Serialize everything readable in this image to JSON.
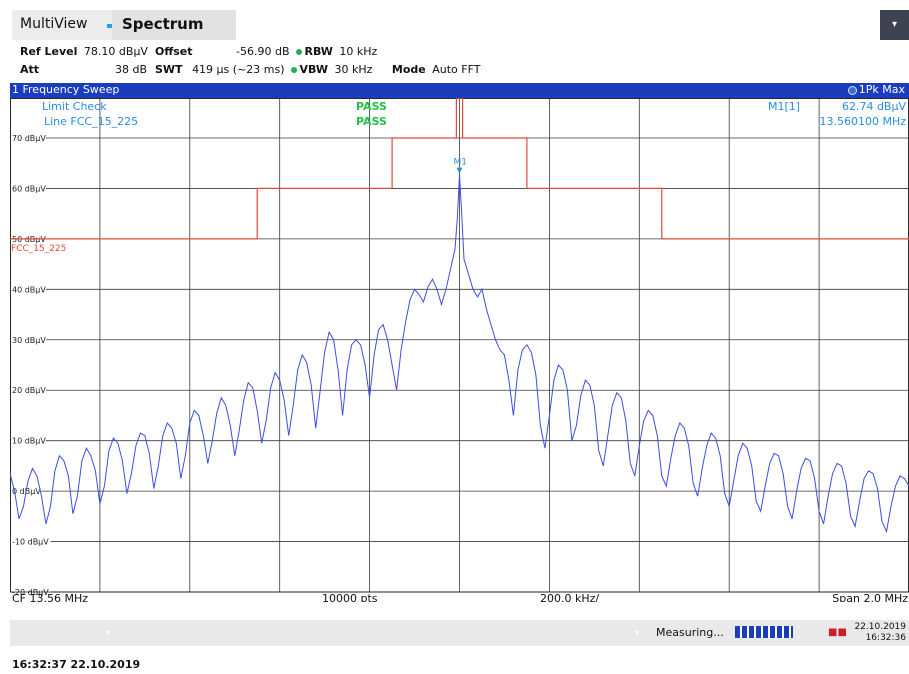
{
  "header": {
    "tabs": [
      {
        "label": "MultiView",
        "active": false
      },
      {
        "label": "Spectrum",
        "active": true
      }
    ],
    "dropdown_icon": "chevron-down-icon"
  },
  "settings": {
    "ref_level_label": "Ref Level",
    "ref_level_value": "78.10 dBµV",
    "offset_label": "Offset",
    "offset_value": "-56.90 dB",
    "rbw_label": "RBW",
    "rbw_value": "10 kHz",
    "att_label": "Att",
    "att_value": "38 dB",
    "swt_label": "SWT",
    "swt_value": "419 µs (~23 ms)",
    "vbw_label": "VBW",
    "vbw_value": "30 kHz",
    "mode_label": "Mode",
    "mode_value": "Auto FFT"
  },
  "window": {
    "title": "1 Frequency Sweep",
    "trace_label": "1Pk Max"
  },
  "limit_check": {
    "title": "Limit Check",
    "title_result": "PASS",
    "line_label": "Line FCC_15_225",
    "line_result": "PASS",
    "line_tag": "FCC_15_225"
  },
  "marker": {
    "name": "M1[1]",
    "level": "62.74 dBµV",
    "freq": "13.560100 MHz",
    "tag": "M1"
  },
  "chart_data": {
    "type": "line",
    "y_unit": "dBµV",
    "ylim": [
      -20,
      80
    ],
    "yticks": [
      -20,
      -10,
      0,
      10,
      20,
      30,
      40,
      50,
      60,
      70
    ],
    "ytick_labels": [
      "-20 dBµV",
      "-10 dBµV",
      "0 dBµV",
      "10 dBµV",
      "20 dBµV",
      "30 dBµV",
      "40 dBµV",
      "50 dBµV",
      "60 dBµV",
      "70 dBµV"
    ],
    "xlim_mhz": [
      12.56,
      14.56
    ],
    "grid": true,
    "x_info": {
      "center": "CF 13.56 MHz",
      "points": "10000 pts",
      "div": "200.0 kHz/",
      "span": "Span 2.0 MHz"
    },
    "limit_line": [
      [
        12.56,
        50.0
      ],
      [
        13.11,
        50.0
      ],
      [
        13.11,
        60.0
      ],
      [
        13.41,
        60.0
      ],
      [
        13.41,
        70.0
      ],
      [
        13.553,
        70.0
      ],
      [
        13.553,
        80.0
      ],
      [
        13.567,
        80.0
      ],
      [
        13.567,
        70.0
      ],
      [
        13.71,
        70.0
      ],
      [
        13.71,
        60.0
      ],
      [
        14.01,
        60.0
      ],
      [
        14.01,
        50.0
      ],
      [
        14.56,
        50.0
      ]
    ],
    "trace": [
      [
        12.56,
        3.5
      ],
      [
        12.57,
        0.0
      ],
      [
        12.58,
        -5.5
      ],
      [
        12.59,
        -3.0
      ],
      [
        12.6,
        2.0
      ],
      [
        12.61,
        4.5
      ],
      [
        12.62,
        3.0
      ],
      [
        12.63,
        -1.0
      ],
      [
        12.64,
        -6.5
      ],
      [
        12.65,
        -3.0
      ],
      [
        12.66,
        4.0
      ],
      [
        12.67,
        7.0
      ],
      [
        12.68,
        6.0
      ],
      [
        12.69,
        3.0
      ],
      [
        12.7,
        -4.5
      ],
      [
        12.71,
        -1.0
      ],
      [
        12.72,
        6.0
      ],
      [
        12.73,
        8.5
      ],
      [
        12.74,
        7.0
      ],
      [
        12.75,
        4.0
      ],
      [
        12.76,
        -2.5
      ],
      [
        12.77,
        1.0
      ],
      [
        12.78,
        8.0
      ],
      [
        12.79,
        10.5
      ],
      [
        12.8,
        9.5
      ],
      [
        12.81,
        6.0
      ],
      [
        12.82,
        -0.5
      ],
      [
        12.83,
        3.5
      ],
      [
        12.84,
        9.0
      ],
      [
        12.85,
        11.5
      ],
      [
        12.86,
        11.0
      ],
      [
        12.87,
        7.5
      ],
      [
        12.88,
        0.5
      ],
      [
        12.89,
        5.0
      ],
      [
        12.9,
        11.0
      ],
      [
        12.91,
        13.5
      ],
      [
        12.92,
        12.5
      ],
      [
        12.93,
        9.5
      ],
      [
        12.94,
        2.5
      ],
      [
        12.95,
        7.0
      ],
      [
        12.96,
        13.5
      ],
      [
        12.97,
        16.0
      ],
      [
        12.98,
        15.0
      ],
      [
        12.99,
        11.0
      ],
      [
        13.0,
        5.5
      ],
      [
        13.01,
        10.0
      ],
      [
        13.02,
        15.5
      ],
      [
        13.03,
        18.5
      ],
      [
        13.04,
        17.0
      ],
      [
        13.05,
        13.0
      ],
      [
        13.06,
        7.0
      ],
      [
        13.07,
        12.0
      ],
      [
        13.08,
        18.0
      ],
      [
        13.09,
        21.5
      ],
      [
        13.1,
        20.5
      ],
      [
        13.11,
        16.0
      ],
      [
        13.12,
        9.5
      ],
      [
        13.13,
        14.0
      ],
      [
        13.14,
        20.5
      ],
      [
        13.15,
        23.5
      ],
      [
        13.16,
        22.0
      ],
      [
        13.17,
        18.0
      ],
      [
        13.18,
        11.0
      ],
      [
        13.19,
        17.0
      ],
      [
        13.2,
        24.0
      ],
      [
        13.21,
        27.0
      ],
      [
        13.22,
        25.5
      ],
      [
        13.23,
        21.0
      ],
      [
        13.24,
        12.5
      ],
      [
        13.25,
        20.0
      ],
      [
        13.26,
        27.5
      ],
      [
        13.27,
        31.5
      ],
      [
        13.28,
        30.0
      ],
      [
        13.29,
        24.0
      ],
      [
        13.3,
        15.0
      ],
      [
        13.31,
        24.0
      ],
      [
        13.32,
        29.0
      ],
      [
        13.33,
        30.0
      ],
      [
        13.34,
        29.0
      ],
      [
        13.35,
        25.0
      ],
      [
        13.36,
        18.5
      ],
      [
        13.37,
        27.0
      ],
      [
        13.38,
        32.0
      ],
      [
        13.39,
        33.0
      ],
      [
        13.4,
        30.0
      ],
      [
        13.41,
        25.0
      ],
      [
        13.42,
        20.0
      ],
      [
        13.43,
        28.0
      ],
      [
        13.44,
        33.5
      ],
      [
        13.45,
        38.0
      ],
      [
        13.46,
        40.0
      ],
      [
        13.47,
        39.0
      ],
      [
        13.48,
        37.5
      ],
      [
        13.49,
        40.5
      ],
      [
        13.5,
        42.0
      ],
      [
        13.51,
        40.0
      ],
      [
        13.52,
        37.0
      ],
      [
        13.53,
        40.0
      ],
      [
        13.54,
        44.0
      ],
      [
        13.55,
        48.0
      ],
      [
        13.555,
        54.0
      ],
      [
        13.56,
        62.74
      ],
      [
        13.565,
        55.0
      ],
      [
        13.57,
        46.0
      ],
      [
        13.58,
        43.0
      ],
      [
        13.59,
        40.0
      ],
      [
        13.6,
        38.5
      ],
      [
        13.61,
        40.0
      ],
      [
        13.62,
        36.0
      ],
      [
        13.63,
        33.0
      ],
      [
        13.64,
        30.0
      ],
      [
        13.65,
        28.0
      ],
      [
        13.66,
        27.0
      ],
      [
        13.67,
        22.0
      ],
      [
        13.68,
        15.0
      ],
      [
        13.69,
        24.0
      ],
      [
        13.7,
        28.0
      ],
      [
        13.71,
        29.0
      ],
      [
        13.72,
        27.5
      ],
      [
        13.73,
        23.0
      ],
      [
        13.74,
        13.0
      ],
      [
        13.75,
        8.5
      ],
      [
        13.76,
        15.0
      ],
      [
        13.77,
        22.0
      ],
      [
        13.78,
        25.0
      ],
      [
        13.79,
        24.0
      ],
      [
        13.8,
        20.0
      ],
      [
        13.81,
        10.0
      ],
      [
        13.82,
        13.0
      ],
      [
        13.83,
        19.0
      ],
      [
        13.84,
        22.0
      ],
      [
        13.85,
        21.0
      ],
      [
        13.86,
        17.0
      ],
      [
        13.87,
        8.0
      ],
      [
        13.88,
        5.0
      ],
      [
        13.89,
        11.0
      ],
      [
        13.9,
        17.0
      ],
      [
        13.91,
        19.5
      ],
      [
        13.92,
        18.5
      ],
      [
        13.93,
        14.0
      ],
      [
        13.94,
        5.5
      ],
      [
        13.95,
        3.0
      ],
      [
        13.96,
        9.0
      ],
      [
        13.97,
        14.0
      ],
      [
        13.98,
        16.0
      ],
      [
        13.99,
        15.0
      ],
      [
        14.0,
        11.0
      ],
      [
        14.01,
        3.0
      ],
      [
        14.02,
        1.0
      ],
      [
        14.03,
        6.5
      ],
      [
        14.04,
        11.0
      ],
      [
        14.05,
        13.5
      ],
      [
        14.06,
        12.5
      ],
      [
        14.07,
        9.0
      ],
      [
        14.08,
        1.5
      ],
      [
        14.09,
        -1.0
      ],
      [
        14.1,
        4.5
      ],
      [
        14.11,
        9.0
      ],
      [
        14.12,
        11.5
      ],
      [
        14.13,
        10.5
      ],
      [
        14.14,
        7.0
      ],
      [
        14.15,
        -0.5
      ],
      [
        14.16,
        -3.0
      ],
      [
        14.17,
        2.0
      ],
      [
        14.18,
        7.0
      ],
      [
        14.19,
        9.5
      ],
      [
        14.2,
        8.5
      ],
      [
        14.21,
        5.0
      ],
      [
        14.22,
        -2.0
      ],
      [
        14.23,
        -4.0
      ],
      [
        14.24,
        1.0
      ],
      [
        14.25,
        5.5
      ],
      [
        14.26,
        7.5
      ],
      [
        14.27,
        7.0
      ],
      [
        14.28,
        3.5
      ],
      [
        14.29,
        -3.0
      ],
      [
        14.3,
        -5.5
      ],
      [
        14.31,
        0.0
      ],
      [
        14.32,
        4.5
      ],
      [
        14.33,
        6.5
      ],
      [
        14.34,
        6.0
      ],
      [
        14.35,
        2.5
      ],
      [
        14.36,
        -4.0
      ],
      [
        14.37,
        -6.5
      ],
      [
        14.38,
        -1.0
      ],
      [
        14.39,
        3.5
      ],
      [
        14.4,
        5.5
      ],
      [
        14.41,
        5.0
      ],
      [
        14.42,
        1.5
      ],
      [
        14.43,
        -5.0
      ],
      [
        14.44,
        -7.0
      ],
      [
        14.45,
        -2.0
      ],
      [
        14.46,
        2.5
      ],
      [
        14.47,
        4.0
      ],
      [
        14.48,
        3.5
      ],
      [
        14.49,
        0.5
      ],
      [
        14.5,
        -6.0
      ],
      [
        14.51,
        -8.0
      ],
      [
        14.52,
        -3.0
      ],
      [
        14.53,
        1.0
      ],
      [
        14.54,
        3.0
      ],
      [
        14.55,
        2.5
      ],
      [
        14.56,
        1.0
      ]
    ],
    "marker_point": [
      13.56,
      62.74
    ]
  },
  "status": {
    "state": "Measuring...",
    "date": "22.10.2019",
    "time": "16:32:36"
  },
  "footer_timestamp": "16:32:37 22.10.2019",
  "colors": {
    "trace": "#3b4fe0",
    "limit": "#e14b3a",
    "pass": "#22c24a",
    "accent_blue": "#1a3dbd",
    "marker_text": "#2a8de0"
  }
}
